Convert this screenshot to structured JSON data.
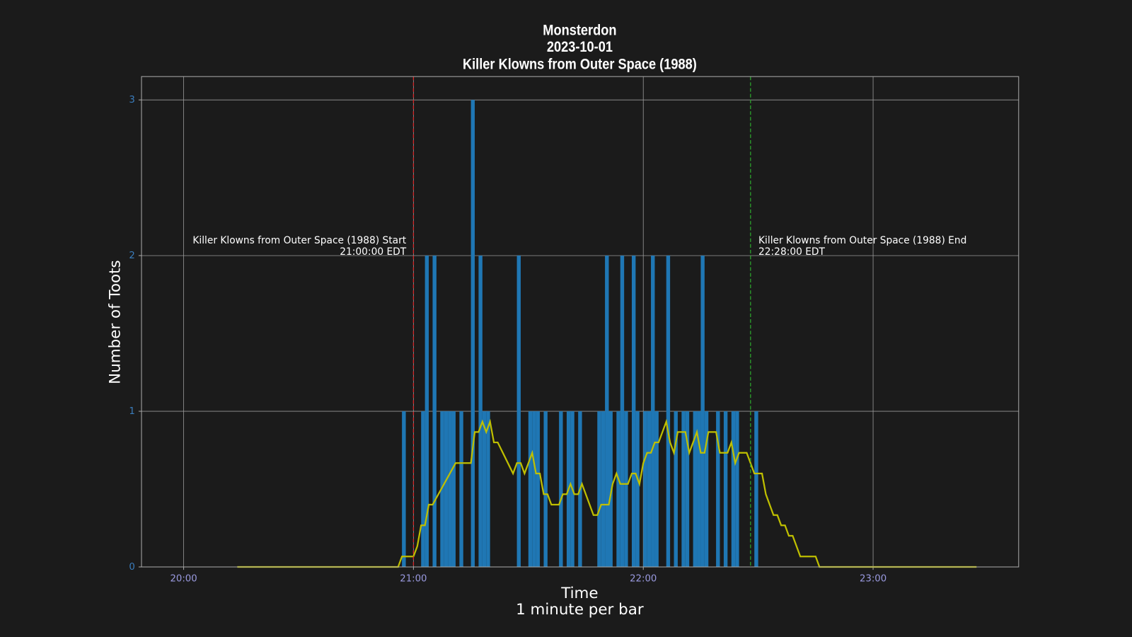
{
  "chart_data": {
    "type": "bar",
    "title": [
      "Monsterdon",
      "2023-10-01",
      "Killer Klowns from Outer Space (1988)"
    ],
    "xlabel": "Time",
    "xlabel_note": "1 minute per bar",
    "ylabel": "Number of Toots",
    "xlim": [
      "19:49",
      "23:38"
    ],
    "xticks": [
      "20:00",
      "21:00",
      "22:00",
      "23:00"
    ],
    "ylim": [
      0,
      3.15
    ],
    "yticks": [
      0,
      1,
      2,
      3
    ],
    "grid": true,
    "series": [
      {
        "type": "bar",
        "color": "#1f77b4",
        "x": [
          "20:57",
          "21:02",
          "21:03",
          "21:05",
          "21:07",
          "21:08",
          "21:09",
          "21:10",
          "21:12",
          "21:15",
          "21:17",
          "21:18",
          "21:19",
          "21:27",
          "21:30",
          "21:31",
          "21:32",
          "21:34",
          "21:38",
          "21:40",
          "21:41",
          "21:43",
          "21:48",
          "21:49",
          "21:50",
          "21:51",
          "21:53",
          "21:54",
          "21:55",
          "21:57",
          "21:58",
          "22:00",
          "22:01",
          "22:02",
          "22:03",
          "22:06",
          "22:08",
          "22:10",
          "22:11",
          "22:13",
          "22:14",
          "22:15",
          "22:16",
          "22:19",
          "22:21",
          "22:23",
          "22:24",
          "22:29"
        ],
        "values": [
          1,
          1,
          2,
          2,
          1,
          1,
          1,
          1,
          1,
          3,
          2,
          1,
          1,
          2,
          1,
          1,
          1,
          1,
          1,
          1,
          1,
          1,
          1,
          1,
          2,
          1,
          1,
          2,
          1,
          2,
          1,
          1,
          1,
          2,
          1,
          2,
          1,
          1,
          1,
          1,
          1,
          2,
          1,
          1,
          1,
          1,
          1,
          1
        ]
      },
      {
        "type": "line",
        "color": "#bfbf00",
        "x": [
          "20:14",
          "20:56",
          "20:57",
          "21:00",
          "21:01",
          "21:02",
          "21:03",
          "21:04",
          "21:05",
          "21:11",
          "21:15",
          "21:16",
          "21:17",
          "21:18",
          "21:19",
          "21:20",
          "21:21",
          "21:22",
          "21:26",
          "21:27",
          "21:28",
          "21:29",
          "21:31",
          "21:32",
          "21:33",
          "21:34",
          "21:35",
          "21:36",
          "21:38",
          "21:39",
          "21:40",
          "21:41",
          "21:42",
          "21:43",
          "21:44",
          "21:47",
          "21:48",
          "21:49",
          "21:51",
          "21:52",
          "21:53",
          "21:54",
          "21:56",
          "21:57",
          "21:58",
          "21:59",
          "22:00",
          "22:01",
          "22:02",
          "22:03",
          "22:04",
          "22:06",
          "22:07",
          "22:08",
          "22:09",
          "22:11",
          "22:12",
          "22:14",
          "22:15",
          "22:16",
          "22:17",
          "22:19",
          "22:20",
          "22:22",
          "22:23",
          "22:24",
          "22:25",
          "22:27",
          "22:29",
          "22:31",
          "22:32",
          "22:34",
          "22:35",
          "22:36",
          "22:37",
          "22:38",
          "22:39",
          "22:41",
          "22:45",
          "22:46",
          "23:27"
        ],
        "values": [
          0,
          0,
          0.067,
          0.067,
          0.133,
          0.267,
          0.267,
          0.4,
          0.4,
          0.667,
          0.667,
          0.867,
          0.867,
          0.933,
          0.867,
          0.933,
          0.8,
          0.8,
          0.6,
          0.667,
          0.667,
          0.6,
          0.733,
          0.6,
          0.6,
          0.467,
          0.467,
          0.4,
          0.4,
          0.467,
          0.467,
          0.533,
          0.467,
          0.467,
          0.533,
          0.333,
          0.333,
          0.4,
          0.4,
          0.533,
          0.6,
          0.533,
          0.533,
          0.6,
          0.6,
          0.533,
          0.667,
          0.733,
          0.733,
          0.8,
          0.8,
          0.933,
          0.8,
          0.733,
          0.867,
          0.867,
          0.733,
          0.867,
          0.733,
          0.733,
          0.867,
          0.867,
          0.733,
          0.733,
          0.8,
          0.667,
          0.733,
          0.733,
          0.6,
          0.6,
          0.467,
          0.333,
          0.333,
          0.267,
          0.267,
          0.2,
          0.2,
          0.067,
          0.067,
          0,
          0
        ]
      }
    ],
    "vlines": [
      {
        "x": "21:00",
        "color": "#d62728",
        "text": [
          "Killer Klowns from Outer Space (1988) Start",
          "21:00:00 EDT"
        ]
      },
      {
        "x": "22:28",
        "color": "#2ca02c",
        "text": [
          "Killer Klowns from Outer Space (1988) End",
          "22:28:00 EDT"
        ]
      }
    ]
  }
}
